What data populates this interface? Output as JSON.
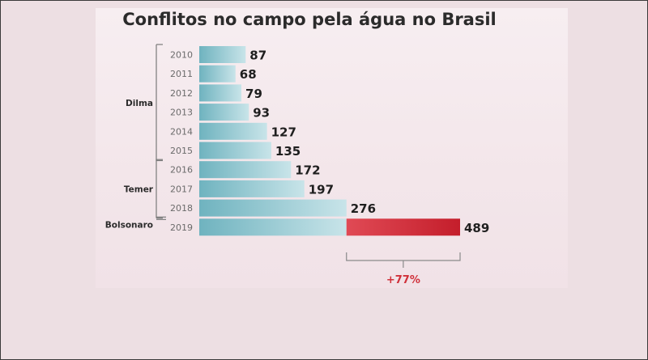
{
  "chart_data": {
    "type": "bar",
    "title": "Conflitos no campo pela água no Brasil",
    "categories": [
      "2010",
      "2011",
      "2012",
      "2013",
      "2014",
      "2015",
      "2016",
      "2017",
      "2018",
      "2019"
    ],
    "values": [
      87,
      68,
      79,
      93,
      127,
      135,
      172,
      197,
      276,
      489
    ],
    "value_labels": [
      "87",
      "68",
      "79",
      "93",
      "127",
      "135",
      "172",
      "197",
      "276",
      "489"
    ],
    "groups": [
      {
        "label": "Dilma",
        "years": [
          "2010",
          "2011",
          "2012",
          "2013",
          "2014",
          "2015"
        ]
      },
      {
        "label": "Temer",
        "years": [
          "2016",
          "2017",
          "2018"
        ]
      },
      {
        "label": "Bolsonaro",
        "years": [
          "2019"
        ]
      }
    ],
    "highlight": {
      "base_year": "2018",
      "target_year": "2019",
      "change_label": "+77%"
    },
    "orientation": "horizontal",
    "colors": {
      "bar": "#7fbec9",
      "bar_light": "#c6e3e8",
      "increase": "#c8202d",
      "label_change": "#d0303a"
    },
    "xlim": [
      0,
      489
    ],
    "grid": false
  }
}
